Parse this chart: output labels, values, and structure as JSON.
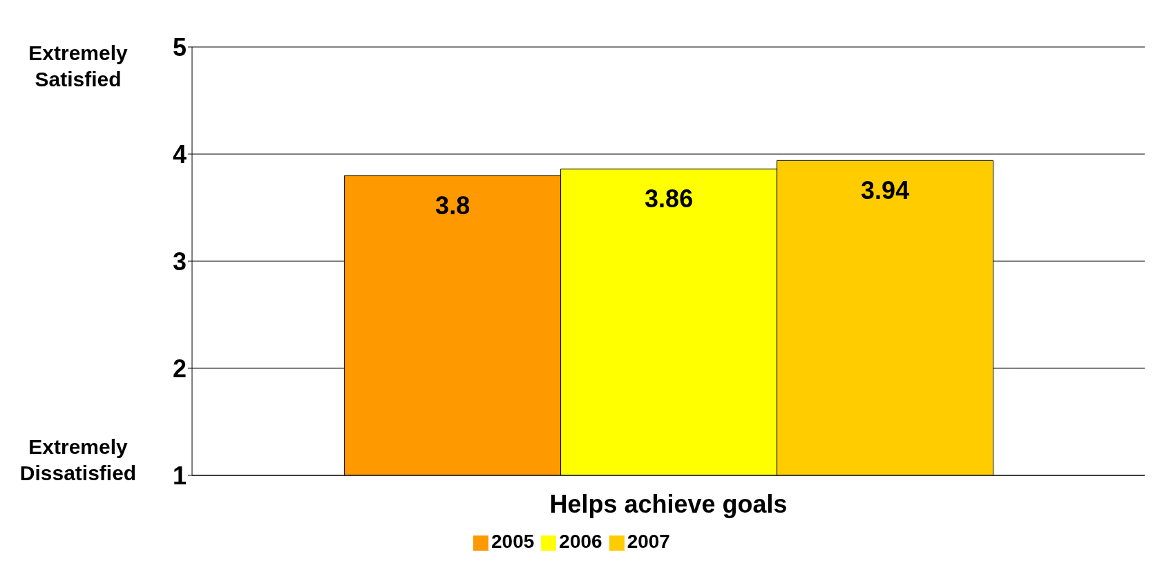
{
  "chart_data": {
    "type": "bar",
    "categories": [
      "Helps achieve goals"
    ],
    "series": [
      {
        "name": "2005",
        "color": "#ff9900",
        "values": [
          3.8
        ]
      },
      {
        "name": "2006",
        "color": "#ffff00",
        "values": [
          3.86
        ]
      },
      {
        "name": "2007",
        "color": "#ffcc00",
        "values": [
          3.94
        ]
      }
    ],
    "ylim": [
      1,
      5
    ],
    "yticks": [
      1,
      2,
      3,
      4,
      5
    ],
    "grid": "y",
    "legend": "bottom",
    "data_labels": true,
    "annotations": [
      "Extremely Satisfied",
      "Extremely Dissatisfied"
    ]
  }
}
